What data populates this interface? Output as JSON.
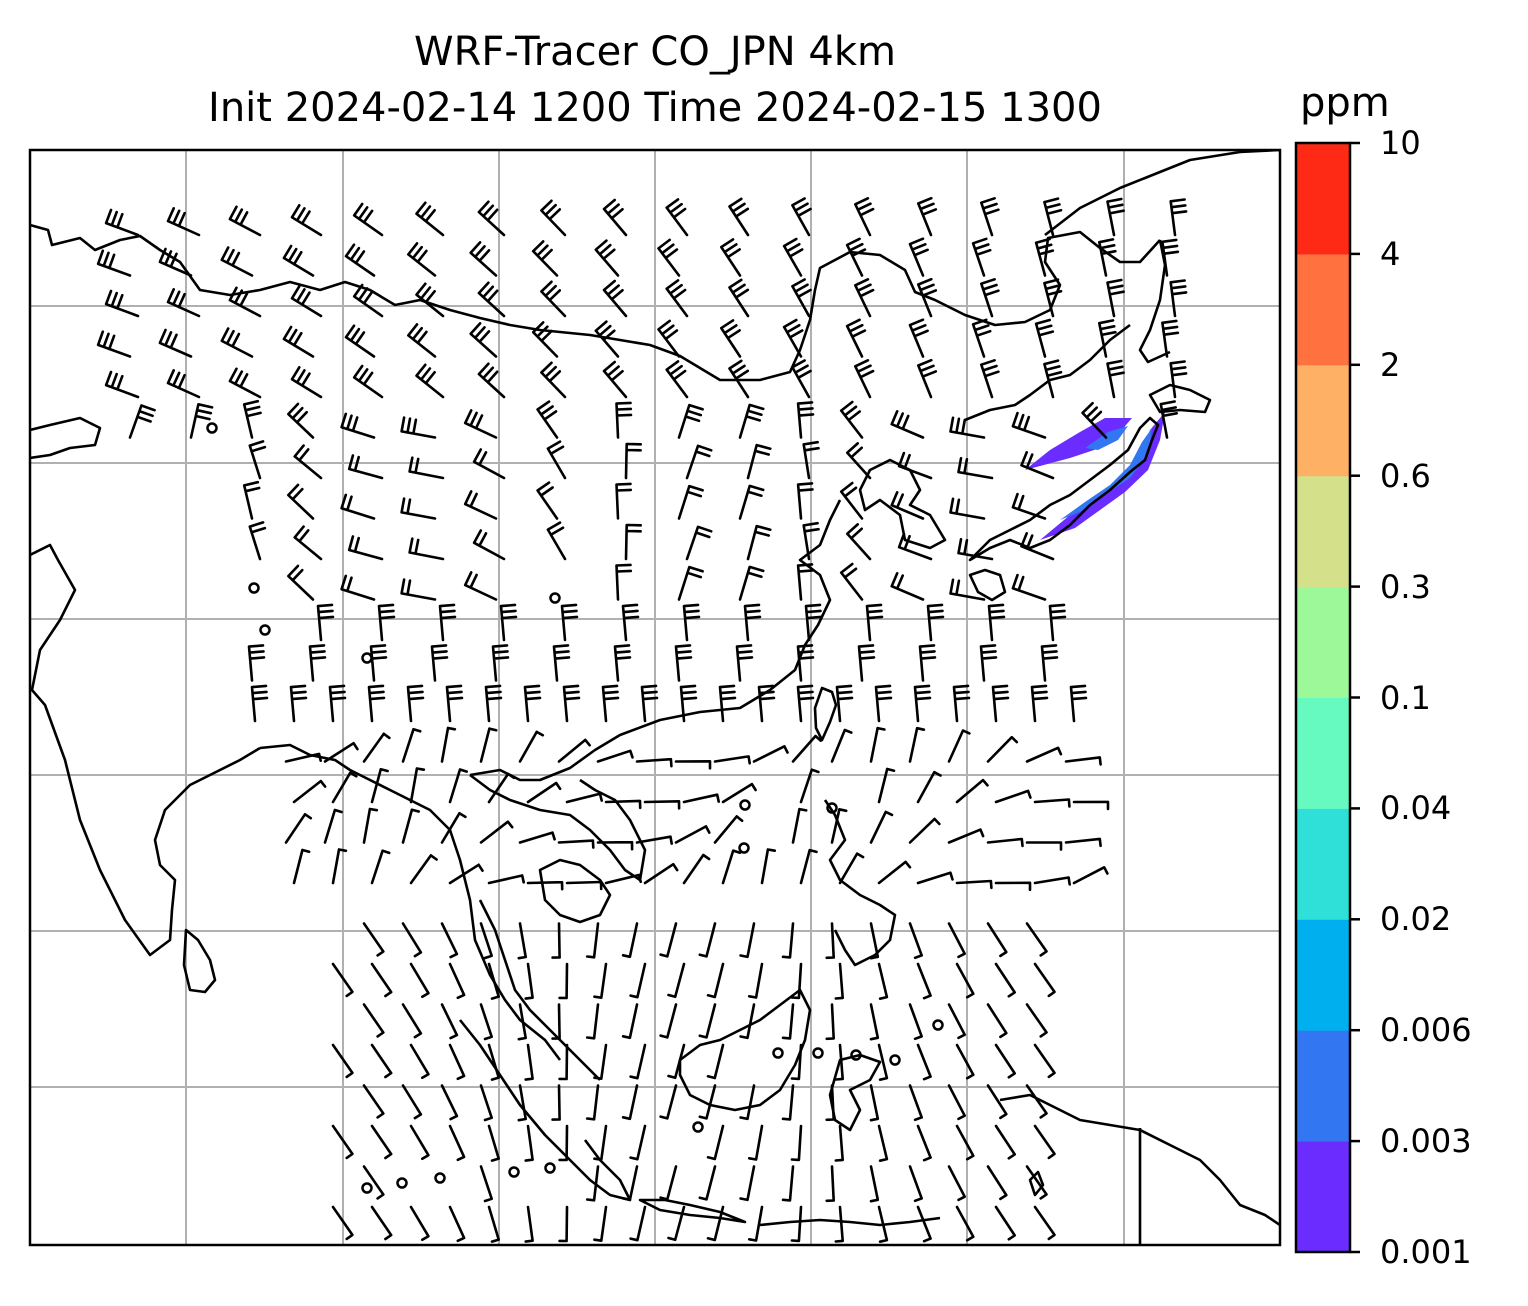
{
  "title": {
    "line1": "WRF-Tracer CO_JPN 4km",
    "line2": "Init 2024-02-14 1200 Time 2024-02-15 1300"
  },
  "colorbar": {
    "unit": "ppm",
    "levels": [
      "0.001",
      "0.003",
      "0.006",
      "0.02",
      "0.04",
      "0.1",
      "0.3",
      "0.6",
      "2",
      "4",
      "10"
    ],
    "colors": [
      "#6a2cff",
      "#3376f2",
      "#00b0ee",
      "#2ee0d8",
      "#66fac0",
      "#9df89a",
      "#d4e08a",
      "#feb064",
      "#ff713e",
      "#ff2a16"
    ]
  },
  "map": {
    "gridlines": true,
    "field": "CO tracer concentration",
    "plume_color_low": "#6a2cff",
    "plume_color_mid": "#3376f2"
  }
}
